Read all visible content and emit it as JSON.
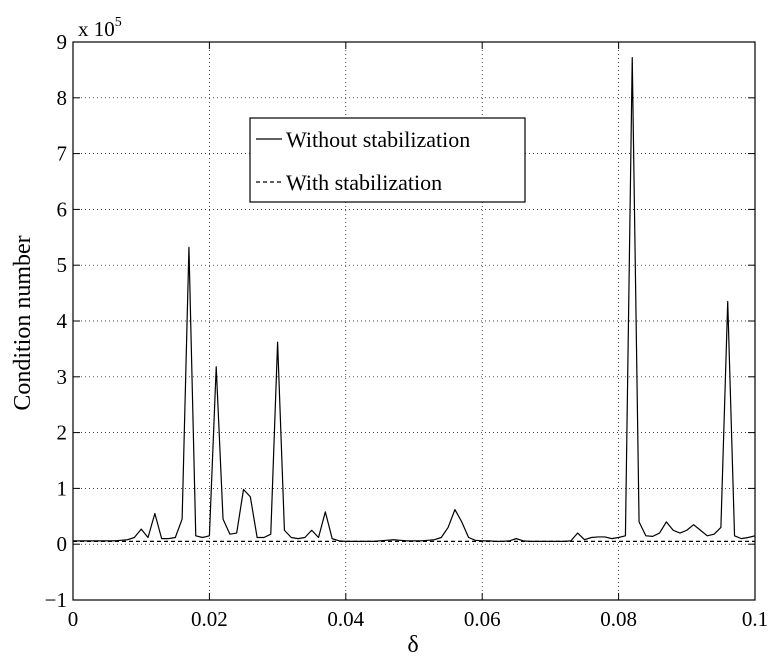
{
  "chart_data": {
    "type": "line",
    "xlabel": "δ",
    "ylabel": "Condition number",
    "axis_multiplier": {
      "base": "x 10",
      "exponent": "5"
    },
    "xlim": [
      0,
      0.1
    ],
    "ylim": [
      -1,
      9
    ],
    "xticks": [
      0,
      0.02,
      0.04,
      0.06,
      0.08,
      0.1
    ],
    "xtick_labels": [
      "0",
      "0.02",
      "0.04",
      "0.06",
      "0.08",
      "0.1"
    ],
    "yticks": [
      -1,
      0,
      1,
      2,
      3,
      4,
      5,
      6,
      7,
      8,
      9
    ],
    "ytick_labels": [
      "−1",
      "0",
      "1",
      "2",
      "3",
      "4",
      "5",
      "6",
      "7",
      "8",
      "9"
    ],
    "grid": true,
    "legend_position": "upper-center",
    "series": [
      {
        "name": "Without stabilization",
        "style": "solid",
        "color": "#000000",
        "x": [
          0,
          0.001,
          0.002,
          0.003,
          0.004,
          0.005,
          0.006,
          0.007,
          0.008,
          0.009,
          0.01,
          0.011,
          0.012,
          0.013,
          0.014,
          0.015,
          0.016,
          0.017,
          0.018,
          0.019,
          0.02,
          0.021,
          0.022,
          0.023,
          0.024,
          0.025,
          0.026,
          0.027,
          0.028,
          0.029,
          0.03,
          0.031,
          0.032,
          0.033,
          0.034,
          0.035,
          0.036,
          0.037,
          0.038,
          0.039,
          0.04,
          0.041,
          0.042,
          0.043,
          0.044,
          0.045,
          0.046,
          0.047,
          0.048,
          0.049,
          0.05,
          0.051,
          0.052,
          0.053,
          0.054,
          0.055,
          0.056,
          0.057,
          0.058,
          0.059,
          0.06,
          0.061,
          0.062,
          0.063,
          0.064,
          0.065,
          0.066,
          0.067,
          0.068,
          0.069,
          0.07,
          0.071,
          0.072,
          0.073,
          0.074,
          0.075,
          0.076,
          0.077,
          0.078,
          0.079,
          0.08,
          0.081,
          0.082,
          0.083,
          0.084,
          0.085,
          0.086,
          0.087,
          0.088,
          0.089,
          0.09,
          0.091,
          0.092,
          0.093,
          0.094,
          0.095,
          0.096,
          0.097,
          0.098,
          0.099,
          0.1
        ],
        "y": [
          0.06,
          0.06,
          0.06,
          0.06,
          0.06,
          0.06,
          0.06,
          0.07,
          0.08,
          0.12,
          0.27,
          0.12,
          0.55,
          0.1,
          0.1,
          0.12,
          0.45,
          5.32,
          0.15,
          0.12,
          0.15,
          3.18,
          0.45,
          0.18,
          0.2,
          0.98,
          0.85,
          0.12,
          0.12,
          0.18,
          3.62,
          0.25,
          0.12,
          0.1,
          0.12,
          0.25,
          0.12,
          0.58,
          0.1,
          0.06,
          0.05,
          0.05,
          0.05,
          0.05,
          0.05,
          0.06,
          0.07,
          0.08,
          0.07,
          0.06,
          0.06,
          0.06,
          0.07,
          0.08,
          0.12,
          0.3,
          0.62,
          0.4,
          0.12,
          0.07,
          0.06,
          0.06,
          0.05,
          0.05,
          0.06,
          0.1,
          0.06,
          0.05,
          0.05,
          0.05,
          0.05,
          0.05,
          0.05,
          0.06,
          0.2,
          0.08,
          0.12,
          0.13,
          0.13,
          0.1,
          0.12,
          0.15,
          8.72,
          0.4,
          0.15,
          0.14,
          0.2,
          0.4,
          0.25,
          0.2,
          0.25,
          0.35,
          0.25,
          0.15,
          0.18,
          0.3,
          4.35,
          0.15,
          0.1,
          0.12,
          0.15
        ]
      },
      {
        "name": "With stabilization",
        "style": "dashed",
        "color": "#000000",
        "x": [
          0,
          0.1
        ],
        "y": [
          0.05,
          0.05
        ]
      }
    ]
  }
}
